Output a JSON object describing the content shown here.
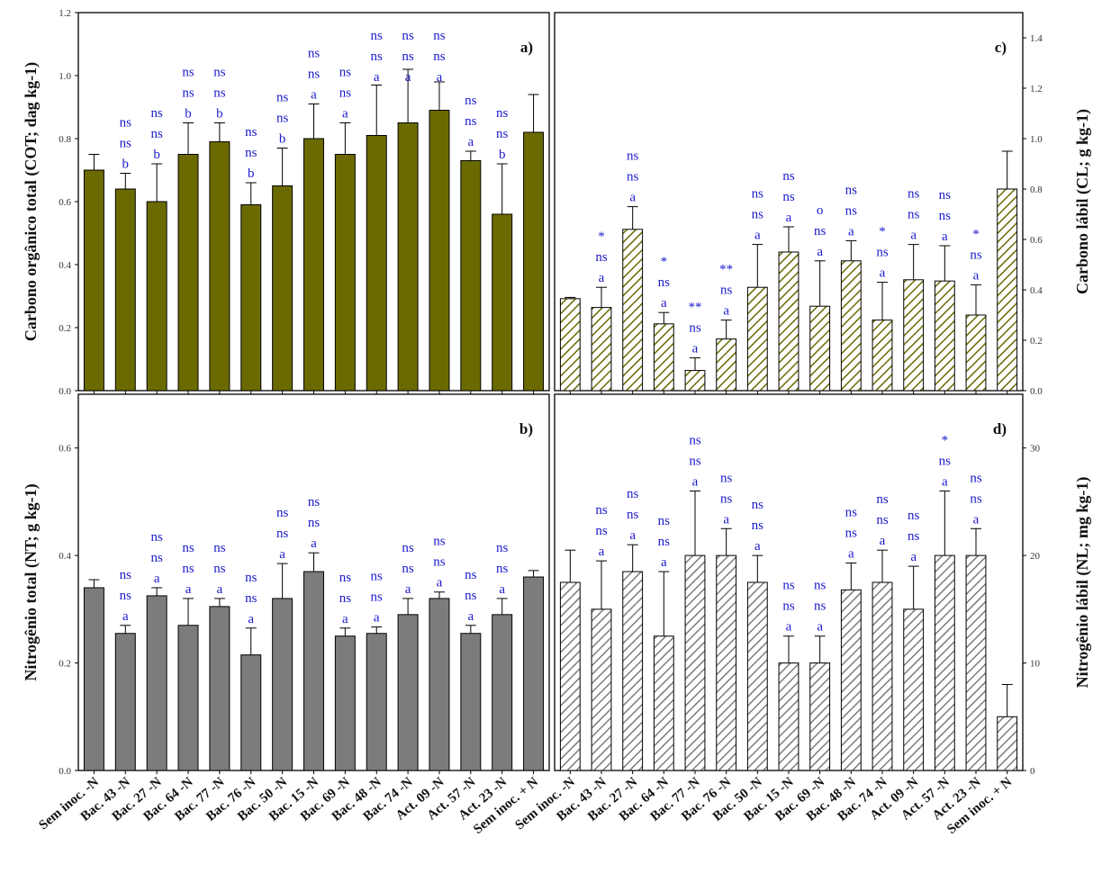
{
  "figure": {
    "categories": [
      "Sem inoc. -N",
      "Bac. 43 -N",
      "Bac. 27 -N",
      "Bac. 64 -N",
      "Bac. 77 -N",
      "Bac. 76 -N",
      "Bac. 50 -N",
      "Bac. 15 -N",
      "Bac. 69 -N",
      "Bac. 48 -N",
      "Bac. 74 -N",
      "Act. 09 -N",
      "Act. 57 -N",
      "Act. 23 -N",
      "Sem inoc. + N"
    ],
    "colors": {
      "bar_olive": "#6b6a00",
      "bar_gray": "#7c7c7c",
      "frame": "#000000",
      "significance_text": "#1a1acc"
    }
  },
  "chart_data": [
    {
      "panel": "a)",
      "type": "bar",
      "pattern": "solid",
      "ylabel": "Carbono orgânico total (COT; dag kg-1)",
      "ylim": [
        0,
        1.2
      ],
      "yticks": [
        "0.0",
        "0.2",
        "0.4",
        "0.6",
        "0.8",
        "1.0",
        "1.2"
      ],
      "values": [
        0.7,
        0.64,
        0.6,
        0.75,
        0.79,
        0.59,
        0.65,
        0.8,
        0.75,
        0.81,
        0.85,
        0.89,
        0.73,
        0.56,
        0.82
      ],
      "errors": [
        0.05,
        0.05,
        0.12,
        0.1,
        0.06,
        0.07,
        0.12,
        0.11,
        0.1,
        0.16,
        0.17,
        0.09,
        0.03,
        0.16,
        0.12
      ],
      "significance": [
        [],
        [
          "ns",
          "ns",
          "b"
        ],
        [
          "ns",
          "ns",
          "b"
        ],
        [
          "ns",
          "ns",
          "b"
        ],
        [
          "ns",
          "ns",
          "b"
        ],
        [
          "ns",
          "ns",
          "b"
        ],
        [
          "ns",
          "ns",
          "b"
        ],
        [
          "ns",
          "ns",
          "a"
        ],
        [
          "ns",
          "ns",
          "a"
        ],
        [
          "ns",
          "ns",
          "a"
        ],
        [
          "ns",
          "ns",
          "a"
        ],
        [
          "ns",
          "ns",
          "a"
        ],
        [
          "ns",
          "ns",
          "a"
        ],
        [
          "ns",
          "ns",
          "b"
        ],
        []
      ]
    },
    {
      "panel": "b)",
      "type": "bar",
      "pattern": "solid",
      "ylabel": "Nitrogênio total (NT; g kg-1)",
      "ylim": [
        0,
        0.7
      ],
      "yticks": [
        "0.0",
        "0.2",
        "0.4",
        "0.6"
      ],
      "values": [
        0.34,
        0.255,
        0.325,
        0.27,
        0.305,
        0.215,
        0.32,
        0.37,
        0.25,
        0.255,
        0.29,
        0.32,
        0.255,
        0.29,
        0.36
      ],
      "errors": [
        0.015,
        0.015,
        0.015,
        0.05,
        0.015,
        0.05,
        0.065,
        0.035,
        0.015,
        0.012,
        0.03,
        0.012,
        0.015,
        0.03,
        0.012
      ],
      "significance": [
        [],
        [
          "ns",
          "ns",
          "a"
        ],
        [
          "ns",
          "ns",
          "a"
        ],
        [
          "ns",
          "ns",
          "a"
        ],
        [
          "ns",
          "ns",
          "a"
        ],
        [
          "ns",
          "ns",
          "a"
        ],
        [
          "ns",
          "ns",
          "a"
        ],
        [
          "ns",
          "ns",
          "a"
        ],
        [
          "ns",
          "ns",
          "a"
        ],
        [
          "ns",
          "ns",
          "a"
        ],
        [
          "ns",
          "ns",
          "a"
        ],
        [
          "ns",
          "ns",
          "a"
        ],
        [
          "ns",
          "ns",
          "a"
        ],
        [
          "ns",
          "ns",
          "a"
        ],
        []
      ]
    },
    {
      "panel": "c)",
      "type": "bar",
      "pattern": "hatched",
      "ylabel": "Carbono lábil (CL; g kg-1)",
      "ylim": [
        0,
        1.5
      ],
      "yticks": [
        "0.0",
        "0.2",
        "0.4",
        "0.6",
        "0.8",
        "1.0",
        "1.2",
        "1.4"
      ],
      "values": [
        0.365,
        0.33,
        0.64,
        0.265,
        0.08,
        0.205,
        0.41,
        0.55,
        0.335,
        0.515,
        0.28,
        0.44,
        0.435,
        0.3,
        0.8
      ],
      "errors": [
        0.005,
        0.08,
        0.09,
        0.045,
        0.05,
        0.075,
        0.17,
        0.1,
        0.18,
        0.08,
        0.15,
        0.14,
        0.14,
        0.12,
        0.15
      ],
      "significance": [
        [],
        [
          "*",
          "ns",
          "a"
        ],
        [
          "ns",
          "ns",
          "a"
        ],
        [
          "*",
          "ns",
          "a"
        ],
        [
          "**",
          "ns",
          "a"
        ],
        [
          "**",
          "ns",
          "a"
        ],
        [
          "ns",
          "ns",
          "a"
        ],
        [
          "ns",
          "ns",
          "a"
        ],
        [
          "o",
          "ns",
          "a"
        ],
        [
          "ns",
          "ns",
          "a"
        ],
        [
          "*",
          "ns",
          "a"
        ],
        [
          "ns",
          "ns",
          "a"
        ],
        [
          "ns",
          "ns",
          "a"
        ],
        [
          "*",
          "ns",
          "a"
        ],
        []
      ]
    },
    {
      "panel": "d)",
      "type": "bar",
      "pattern": "hatched",
      "ylabel": "Nitrogênio lábil (NL; mg kg-1)",
      "ylim": [
        0,
        35
      ],
      "yticks": [
        "0",
        "10",
        "20",
        "30"
      ],
      "values": [
        17.5,
        15,
        18.5,
        12.5,
        20,
        20,
        17.5,
        10,
        10,
        16.8,
        17.5,
        15,
        20,
        20,
        5
      ],
      "errors": [
        3,
        4.5,
        2.5,
        6,
        6,
        2.5,
        2.5,
        2.5,
        2.5,
        2.5,
        3,
        4,
        6,
        2.5,
        3
      ],
      "significance": [
        [],
        [
          "ns",
          "ns",
          "a"
        ],
        [
          "ns",
          "ns",
          "a"
        ],
        [
          "ns",
          "ns",
          "a"
        ],
        [
          "ns",
          "ns",
          "a"
        ],
        [
          "ns",
          "ns",
          "a"
        ],
        [
          "ns",
          "ns",
          "a"
        ],
        [
          "ns",
          "ns",
          "a"
        ],
        [
          "ns",
          "ns",
          "a"
        ],
        [
          "ns",
          "ns",
          "a"
        ],
        [
          "ns",
          "ns",
          "a"
        ],
        [
          "ns",
          "ns",
          "a"
        ],
        [
          "*",
          "ns",
          "a"
        ],
        [
          "ns",
          "ns",
          "a"
        ],
        []
      ]
    }
  ]
}
